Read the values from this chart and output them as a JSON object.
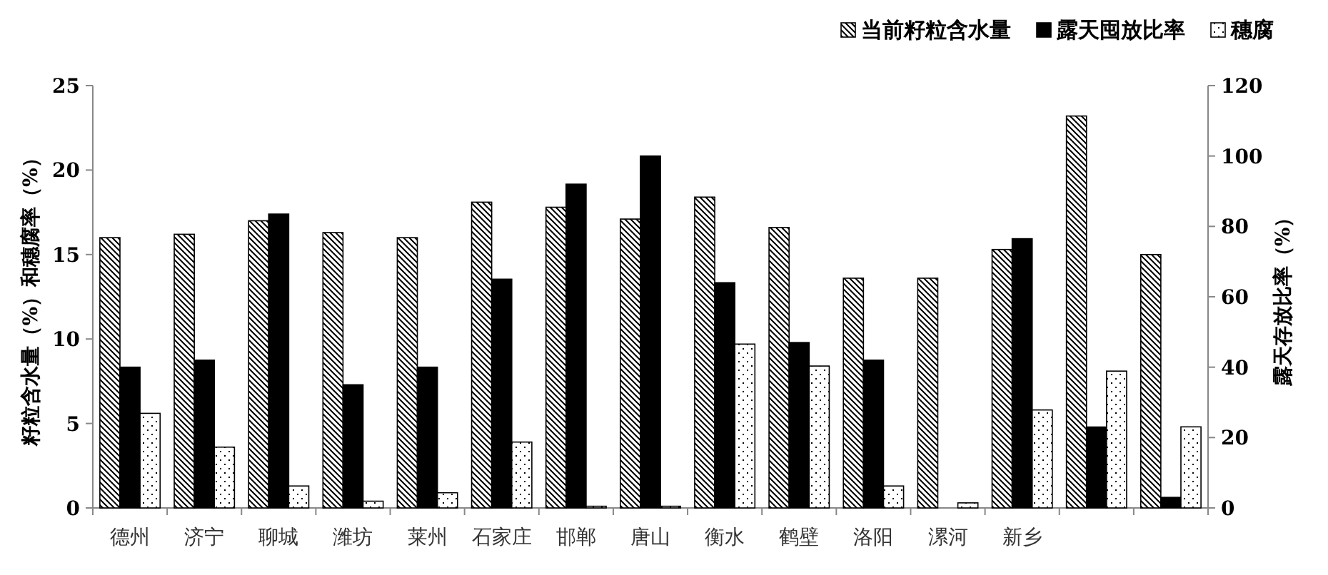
{
  "chart_data": {
    "type": "bar",
    "categories": [
      "德州",
      "济宁",
      "聊城",
      "潍坊",
      "莱州",
      "石家庄",
      "邯郸",
      "唐山",
      "衡水",
      "鹤壁",
      "洛阳",
      "漯河",
      "新乡",
      null,
      null
    ],
    "series": [
      {
        "name": "当前籽粒含水量",
        "color": "#000000",
        "values": [
          16.0,
          16.2,
          17.0,
          16.3,
          16.0,
          18.1,
          17.8,
          17.1,
          18.4,
          16.6,
          13.6,
          13.6,
          15.3,
          23.2,
          15.0
        ]
      },
      {
        "name": "露天囤放比率",
        "color": "#000000",
        "axis": "y2",
        "values": [
          40,
          42,
          83.5,
          35,
          40,
          65,
          92,
          100,
          64,
          47,
          42,
          0,
          76.5,
          23,
          3
        ]
      },
      {
        "name": "穗腐",
        "color": "#000000",
        "values": [
          5.6,
          3.6,
          1.3,
          0.4,
          0.9,
          3.9,
          0.1,
          0.1,
          9.7,
          8.4,
          1.3,
          0.3,
          5.8,
          8.1,
          4.8
        ]
      }
    ],
    "ylabel": "籽粒含水量（%）和穗腐率（%）",
    "y2label": "露天存放比率（%）",
    "ylim": [
      0,
      25
    ],
    "yticks": [
      0,
      5,
      10,
      15,
      20,
      25
    ],
    "y2lim": [
      0,
      120
    ],
    "y2ticks": [
      0,
      20,
      40,
      60,
      80,
      100,
      120
    ],
    "legend": "top right"
  }
}
